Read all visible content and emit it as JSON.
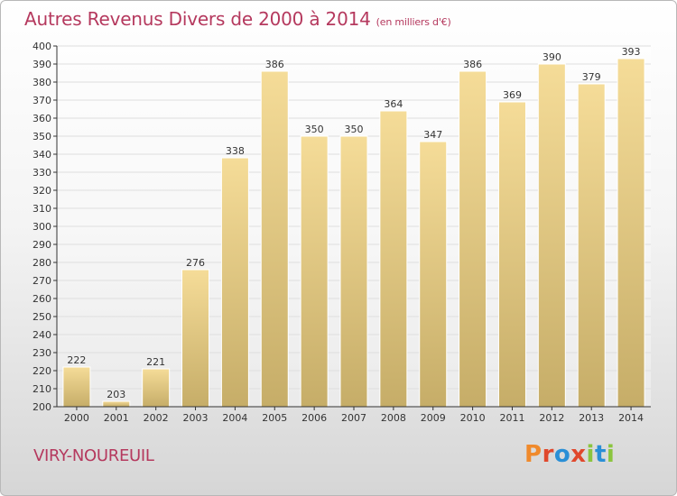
{
  "header": {
    "title": "Autres Revenus Divers de 2000 à 2014",
    "unit": "(en milliers d'€)"
  },
  "footer": {
    "city": "VIRY-NOUREUIL",
    "brand": "Proxiti",
    "brand_colors": [
      "#f08a2c",
      "#e0482c",
      "#2a8fd6",
      "#e0482c",
      "#8bc53f",
      "#2a8fd6",
      "#8bc53f"
    ]
  },
  "colors": {
    "title": "#b5395e",
    "bar_light": "#f5dc98",
    "bar_dark": "#c6ad68",
    "grid": "#dedede",
    "axis": "#333333"
  },
  "chart_data": {
    "type": "bar",
    "categories": [
      "2000",
      "2001",
      "2002",
      "2003",
      "2004",
      "2005",
      "2006",
      "2007",
      "2008",
      "2009",
      "2010",
      "2011",
      "2012",
      "2013",
      "2014"
    ],
    "values": [
      222,
      203,
      221,
      276,
      338,
      386,
      350,
      350,
      364,
      347,
      386,
      369,
      390,
      379,
      393
    ],
    "ylim": [
      200,
      400
    ],
    "yticks": [
      200,
      210,
      220,
      230,
      240,
      250,
      260,
      270,
      280,
      290,
      300,
      310,
      320,
      330,
      340,
      350,
      360,
      370,
      380,
      390,
      400
    ],
    "grid": true,
    "data_labels": true
  }
}
